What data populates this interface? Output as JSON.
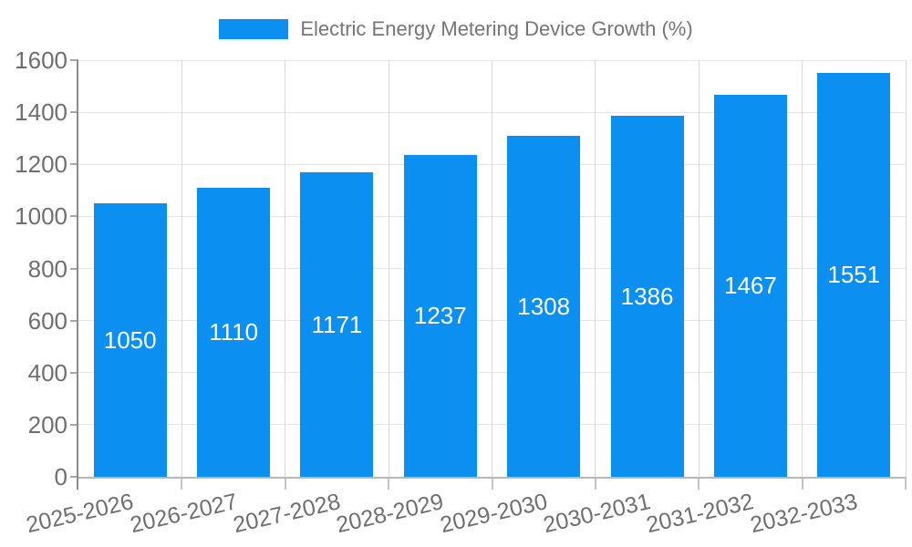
{
  "chart_data": {
    "type": "bar",
    "title": "Electric Energy Metering Device Growth (%)",
    "categories": [
      "2025-2026",
      "2026-2027",
      "2027-2028",
      "2028-2029",
      "2029-2030",
      "2030-2031",
      "2031-2032",
      "2032-2033"
    ],
    "values": [
      1050,
      1110,
      1171,
      1237,
      1308,
      1386,
      1467,
      1551
    ],
    "xlabel": "",
    "ylabel": "",
    "ylim": [
      0,
      1600
    ],
    "yticks": [
      0,
      200,
      400,
      600,
      800,
      1000,
      1200,
      1400,
      1600
    ],
    "grid": true,
    "legend_position": "top",
    "value_labels": true,
    "colors": {
      "bar": "#0b90f2",
      "bar_label": "#ffffff",
      "legend_text": "#757575",
      "axis_text": "#6f6f6f",
      "grid_h": "#e6e6e6",
      "grid_v": "#d9d9d9",
      "axis_y": "#8c8c8c",
      "axis_x": "#b8b8b8",
      "tick": "#a8a8a8",
      "tick_x": "#c4c4c4"
    }
  }
}
